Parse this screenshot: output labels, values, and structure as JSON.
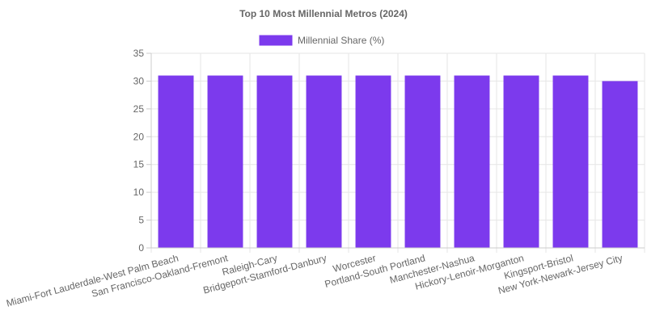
{
  "chart_data": {
    "type": "bar",
    "title": "Top 10 Most Millennial Metros (2024)",
    "categories": [
      "Miami-Fort Lauderdale-West Palm Beach",
      "San Francisco-Oakland-Fremont",
      "Raleigh-Cary",
      "Bridgeport-Stamford-Danbury",
      "Worcester",
      "Portland-South Portland",
      "Manchester-Nashua",
      "Hickory-Lenoir-Morganton",
      "Kingsport-Bristol",
      "New York-Newark-Jersey City"
    ],
    "series": [
      {
        "name": "Millennial Share (%)",
        "values": [
          31,
          31,
          31,
          31,
          31,
          31,
          31,
          31,
          31,
          30
        ],
        "color": "#7c3aed"
      }
    ],
    "ylim": [
      0,
      35
    ],
    "yticks": [
      0,
      5,
      10,
      15,
      20,
      25,
      30,
      35
    ],
    "grid": true,
    "legend_position": "top"
  }
}
